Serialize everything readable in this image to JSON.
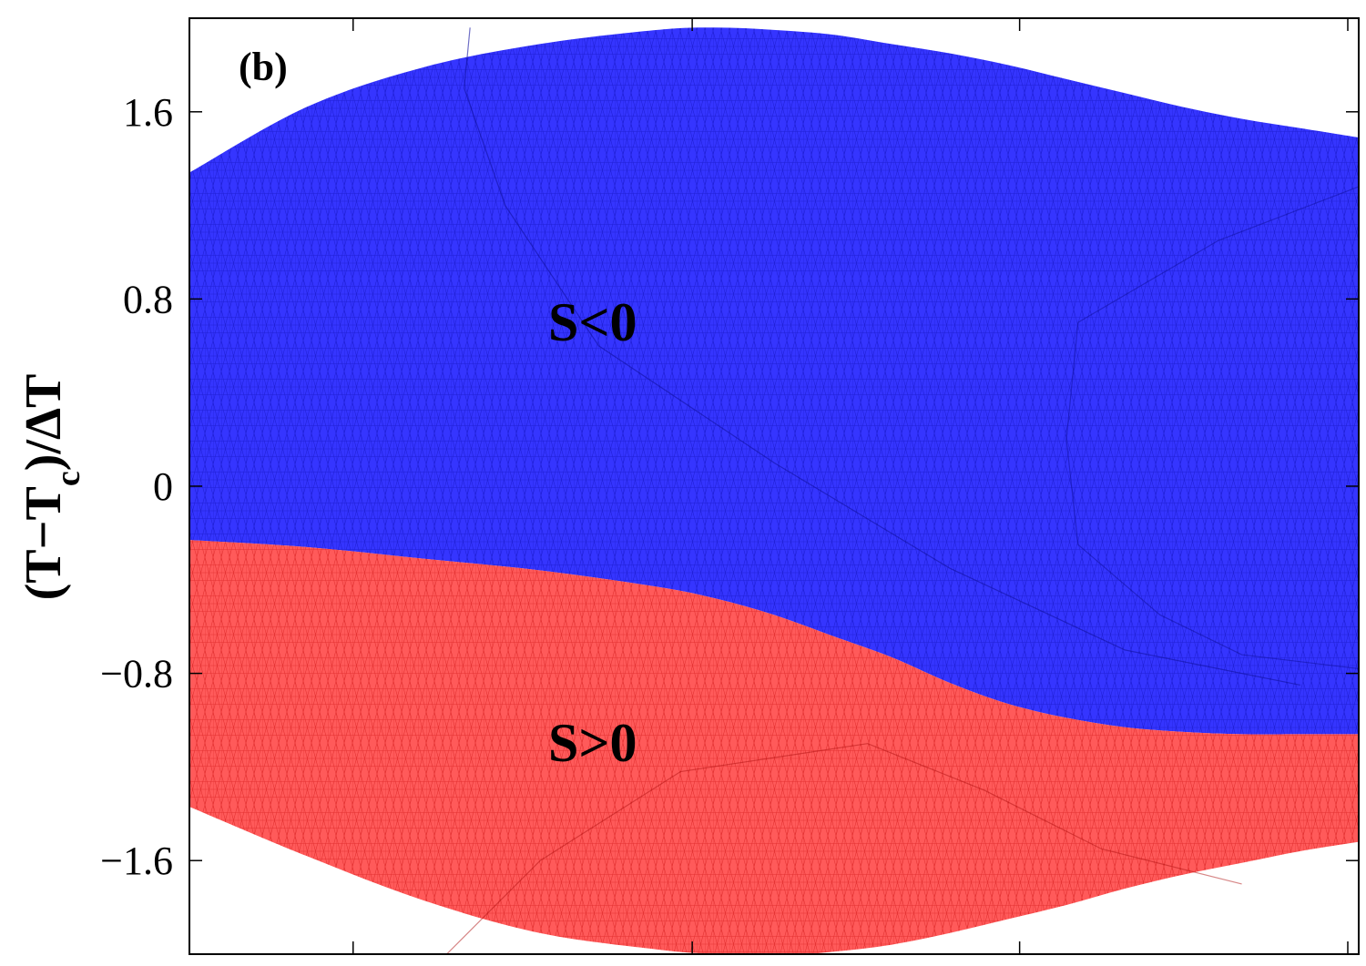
{
  "chart_data": {
    "type": "area",
    "panel_label": "(b)",
    "ylabel": "(T−T",
    "ylabel_sub": "c",
    "ylabel_tail": ")/ΔT",
    "xlabel": "",
    "ylim": [
      -2.0,
      2.0
    ],
    "xlim": [
      0,
      1
    ],
    "yticks": [
      1.6,
      0.8,
      0,
      -0.8,
      -1.6
    ],
    "ytick_labels": [
      "1.6",
      "0.8",
      "0",
      "−0.8",
      "−1.6"
    ],
    "xticks": [
      0.14,
      0.43,
      0.71,
      1.0
    ],
    "colors": {
      "negative": "#3333ff",
      "positive": "#ff5555",
      "mesh_negative": "#1f1fd6",
      "mesh_positive": "#e03030"
    },
    "regions": [
      {
        "label": "S<0",
        "sign": "negative"
      },
      {
        "label": "S>0",
        "sign": "positive"
      }
    ],
    "boundaries": {
      "x": [
        0.0,
        0.1,
        0.2,
        0.3,
        0.4,
        0.45,
        0.5,
        0.55,
        0.6,
        0.65,
        0.7,
        0.75,
        0.8,
        0.85,
        0.9,
        0.95,
        1.0
      ],
      "upper": [
        1.34,
        1.62,
        1.79,
        1.89,
        1.95,
        1.96,
        1.95,
        1.93,
        1.89,
        1.85,
        1.8,
        1.74,
        1.68,
        1.62,
        1.57,
        1.53,
        1.49
      ],
      "zero_line": [
        -0.23,
        -0.26,
        -0.31,
        -0.36,
        -0.43,
        -0.48,
        -0.55,
        -0.64,
        -0.73,
        -0.84,
        -0.93,
        -0.99,
        -1.03,
        -1.05,
        -1.06,
        -1.06,
        -1.06
      ],
      "lower": [
        -1.37,
        -1.58,
        -1.77,
        -1.91,
        -1.98,
        -2.0,
        -2.01,
        -1.99,
        -1.96,
        -1.91,
        -1.85,
        -1.79,
        -1.72,
        -1.66,
        -1.61,
        -1.56,
        -1.52
      ]
    }
  }
}
